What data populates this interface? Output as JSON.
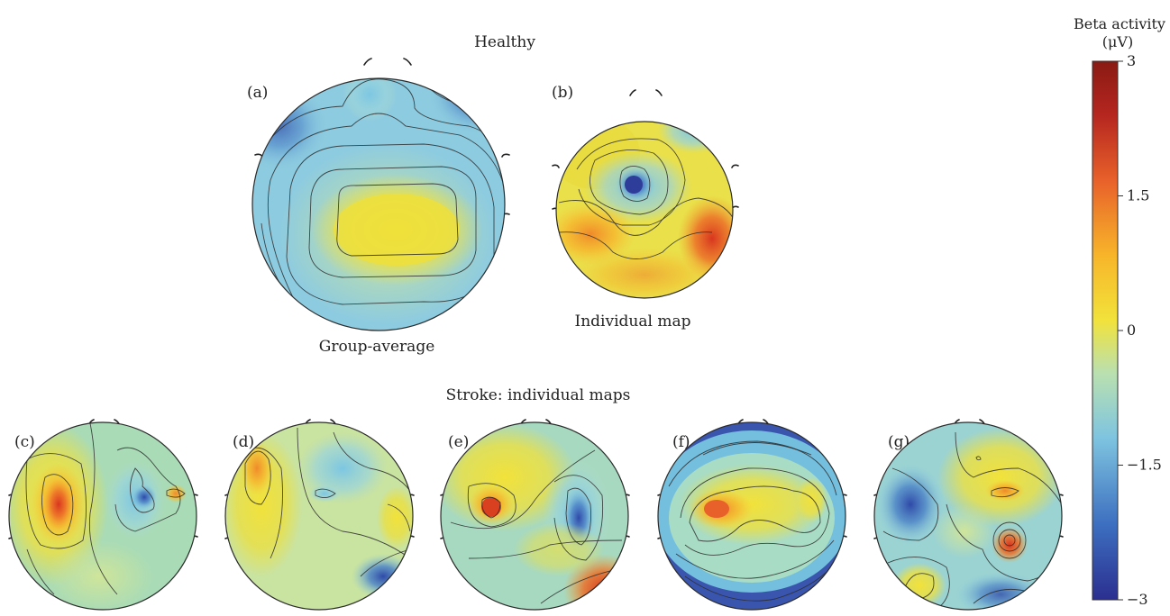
{
  "titles": {
    "healthy": "Healthy",
    "stroke": "Stroke: individual maps"
  },
  "captions": {
    "group_average": "Group-average",
    "individual_map": "Individual map"
  },
  "panels": {
    "a": "(a)",
    "b": "(b)",
    "c": "(c)",
    "d": "(d)",
    "e": "(e)",
    "f": "(f)",
    "g": "(g)"
  },
  "colorbar": {
    "title_line1": "Beta activity",
    "title_line2": "(μV)",
    "ticks": [
      "3",
      "1.5",
      "0",
      "−1.5",
      "−3"
    ],
    "range": [
      -3,
      3
    ],
    "colormap": [
      "#2b2f8f",
      "#3d6fc0",
      "#7ec4e0",
      "#b9e0b0",
      "#f2e23a",
      "#f7b52a",
      "#e8602a",
      "#b5261f",
      "#8a1a14"
    ]
  }
}
